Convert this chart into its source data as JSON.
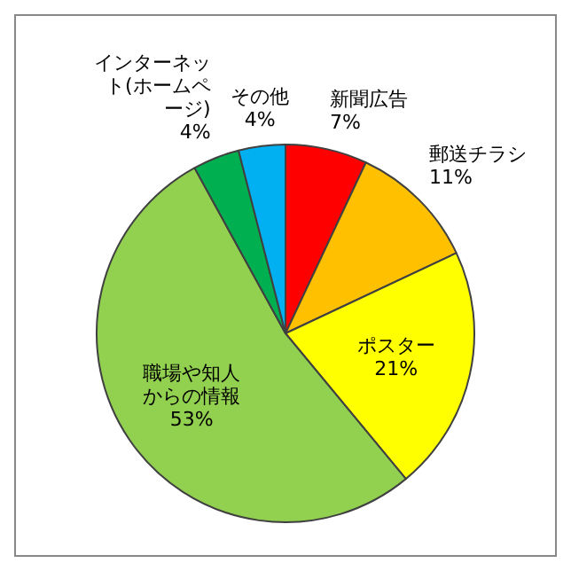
{
  "chart_data": {
    "type": "pie",
    "categories": [
      "新聞広告",
      "郵送チラシ",
      "ポスター",
      "職場や知人からの情報",
      "インターネット(ホームページ)",
      "その他"
    ],
    "values": [
      7,
      11,
      21,
      53,
      4,
      4
    ],
    "value_labels": [
      "7%",
      "11%",
      "21%",
      "53%",
      "4%",
      "4%"
    ],
    "colors": [
      "#ff0000",
      "#ffc000",
      "#ffff00",
      "#92d050",
      "#00b050",
      "#00b0f0"
    ],
    "legend": false
  }
}
